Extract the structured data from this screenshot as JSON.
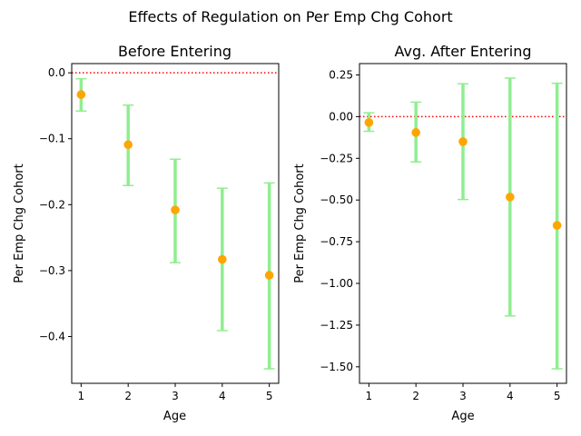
{
  "suptitle": "Effects of Regulation on Per Emp Chg Cohort",
  "colors": {
    "point": "#ffa500",
    "errorbar": "#90ee90",
    "refline": "#ff0000",
    "axis": "#000000"
  },
  "chart_data": [
    {
      "type": "scatter",
      "title": "Before Entering",
      "xlabel": "Age",
      "ylabel": "Per Emp Chg Cohort",
      "x": [
        1,
        2,
        3,
        4,
        5
      ],
      "y": [
        -0.033,
        -0.109,
        -0.208,
        -0.283,
        -0.307
      ],
      "y_lower": [
        -0.058,
        -0.171,
        -0.288,
        -0.391,
        -0.449
      ],
      "y_upper": [
        -0.009,
        -0.049,
        -0.131,
        -0.175,
        -0.167
      ],
      "reference_line": 0,
      "xlim": [
        0.8,
        5.2
      ],
      "ylim": [
        -0.471,
        0.014
      ],
      "xticks": [
        1,
        2,
        3,
        4,
        5
      ],
      "xtick_labels": [
        "1",
        "2",
        "3",
        "4",
        "5"
      ],
      "yticks": [
        0.0,
        -0.1,
        -0.2,
        -0.3,
        -0.4
      ],
      "ytick_labels": [
        "0.0",
        "−0.1",
        "−0.2",
        "−0.3",
        "−0.4"
      ],
      "grid": false,
      "legend": null
    },
    {
      "type": "scatter",
      "title": "Avg. After Entering",
      "xlabel": "Age",
      "ylabel": "Per Emp Chg Cohort",
      "x": [
        1,
        2,
        3,
        4,
        5
      ],
      "y": [
        -0.035,
        -0.095,
        -0.15,
        -0.482,
        -0.652
      ],
      "y_lower": [
        -0.088,
        -0.272,
        -0.497,
        -1.195,
        -1.512
      ],
      "y_upper": [
        0.023,
        0.087,
        0.197,
        0.231,
        0.2
      ],
      "reference_line": 0,
      "xlim": [
        0.8,
        5.2
      ],
      "ylim": [
        -1.599,
        0.318
      ],
      "xticks": [
        1,
        2,
        3,
        4,
        5
      ],
      "xtick_labels": [
        "1",
        "2",
        "3",
        "4",
        "5"
      ],
      "yticks": [
        0.25,
        0.0,
        -0.25,
        -0.5,
        -0.75,
        -1.0,
        -1.25,
        -1.5
      ],
      "ytick_labels": [
        "0.25",
        "0.00",
        "−0.25",
        "−0.50",
        "−0.75",
        "−1.00",
        "−1.25",
        "−1.50"
      ],
      "grid": false,
      "legend": null
    }
  ]
}
